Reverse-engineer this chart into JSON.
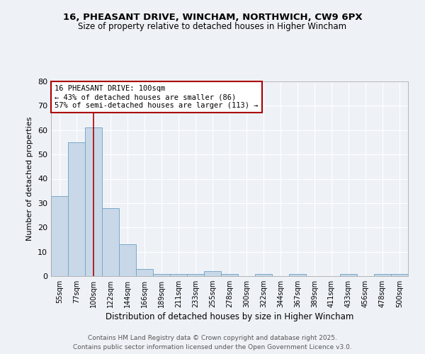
{
  "title_line1": "16, PHEASANT DRIVE, WINCHAM, NORTHWICH, CW9 6PX",
  "title_line2": "Size of property relative to detached houses in Higher Wincham",
  "xlabel": "Distribution of detached houses by size in Higher Wincham",
  "ylabel": "Number of detached properties",
  "bins": [
    "55sqm",
    "77sqm",
    "100sqm",
    "122sqm",
    "144sqm",
    "166sqm",
    "189sqm",
    "211sqm",
    "233sqm",
    "255sqm",
    "278sqm",
    "300sqm",
    "322sqm",
    "344sqm",
    "367sqm",
    "389sqm",
    "411sqm",
    "433sqm",
    "456sqm",
    "478sqm",
    "500sqm"
  ],
  "values": [
    33,
    55,
    61,
    28,
    13,
    3,
    1,
    1,
    1,
    2,
    1,
    0,
    1,
    0,
    1,
    0,
    0,
    1,
    0,
    1,
    1
  ],
  "bar_color": "#c8d8e8",
  "bar_edge_color": "#7aa8c8",
  "vline_x": 2,
  "vline_color": "#aa0000",
  "annotation_text": "16 PHEASANT DRIVE: 100sqm\n← 43% of detached houses are smaller (86)\n57% of semi-detached houses are larger (113) →",
  "annotation_box_color": "white",
  "annotation_box_edge": "#aa0000",
  "ylim": [
    0,
    80
  ],
  "yticks": [
    0,
    10,
    20,
    30,
    40,
    50,
    60,
    70,
    80
  ],
  "footer_line1": "Contains HM Land Registry data © Crown copyright and database right 2025.",
  "footer_line2": "Contains public sector information licensed under the Open Government Licence v3.0.",
  "background_color": "#eef2f7",
  "grid_color": "#ffffff",
  "fig_width": 6.0,
  "fig_height": 5.0,
  "dpi": 100
}
